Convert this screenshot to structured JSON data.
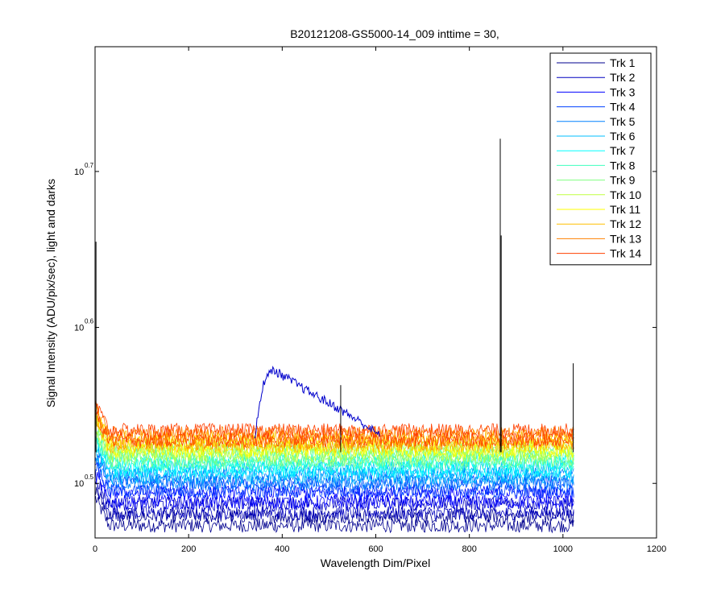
{
  "chart_data": {
    "type": "line",
    "title": "B20121208-GS5000-14_009 inttime = 30,",
    "xlabel": "Wavelength Dim/Pixel",
    "ylabel": "Signal Intensity (ADU/pix/sec), light and darks",
    "xlim": [
      0,
      1200
    ],
    "ylim_log10": [
      0.465,
      0.78
    ],
    "yscale": "log",
    "grid": false,
    "legend_position": "top-right",
    "x_ticks": [
      "0",
      "200",
      "400",
      "600",
      "800",
      "1000",
      "1200"
    ],
    "y_ticks": [
      {
        "base": "10",
        "exp": "0.5",
        "log10": 0.5
      },
      {
        "base": "10",
        "exp": "0.6",
        "log10": 0.6
      },
      {
        "base": "10",
        "exp": "0.7",
        "log10": 0.7
      }
    ],
    "x_data_range": [
      1,
      1024
    ],
    "series": [
      {
        "name": "Trk 1",
        "color": "#00008f",
        "level_log10": 0.475
      },
      {
        "name": "Trk 2",
        "color": "#0000bf",
        "level_log10": 0.483
      },
      {
        "name": "Trk 3",
        "color": "#0000ff",
        "level_log10": 0.49
      },
      {
        "name": "Trk 4",
        "color": "#0040ff",
        "level_log10": 0.497
      },
      {
        "name": "Trk 5",
        "color": "#0080ff",
        "level_log10": 0.502
      },
      {
        "name": "Trk 6",
        "color": "#00bfff",
        "level_log10": 0.506
      },
      {
        "name": "Trk 7",
        "color": "#00ffff",
        "level_log10": 0.51
      },
      {
        "name": "Trk 8",
        "color": "#40ffbf",
        "level_log10": 0.514
      },
      {
        "name": "Trk 9",
        "color": "#80ff80",
        "level_log10": 0.517
      },
      {
        "name": "Trk 10",
        "color": "#bfff40",
        "level_log10": 0.52
      },
      {
        "name": "Trk 11",
        "color": "#ffff00",
        "level_log10": 0.523
      },
      {
        "name": "Trk 12",
        "color": "#ffbf00",
        "level_log10": 0.526
      },
      {
        "name": "Trk 13",
        "color": "#ff8000",
        "level_log10": 0.528
      },
      {
        "name": "Trk 14",
        "color": "#ff4000",
        "level_log10": 0.53
      }
    ],
    "light_feature": {
      "color": "#0000cc",
      "points": [
        [
          340,
          0.528
        ],
        [
          360,
          0.565
        ],
        [
          380,
          0.573
        ],
        [
          450,
          0.56
        ],
        [
          520,
          0.548
        ],
        [
          580,
          0.537
        ],
        [
          610,
          0.53
        ]
      ]
    },
    "spikes": [
      {
        "x": 2,
        "top_log10": 0.655
      },
      {
        "x": 525,
        "top_log10": 0.563
      },
      {
        "x": 866,
        "top_log10": 0.721
      },
      {
        "x": 868,
        "top_log10": 0.659
      },
      {
        "x": 1022,
        "top_log10": 0.577
      }
    ]
  }
}
